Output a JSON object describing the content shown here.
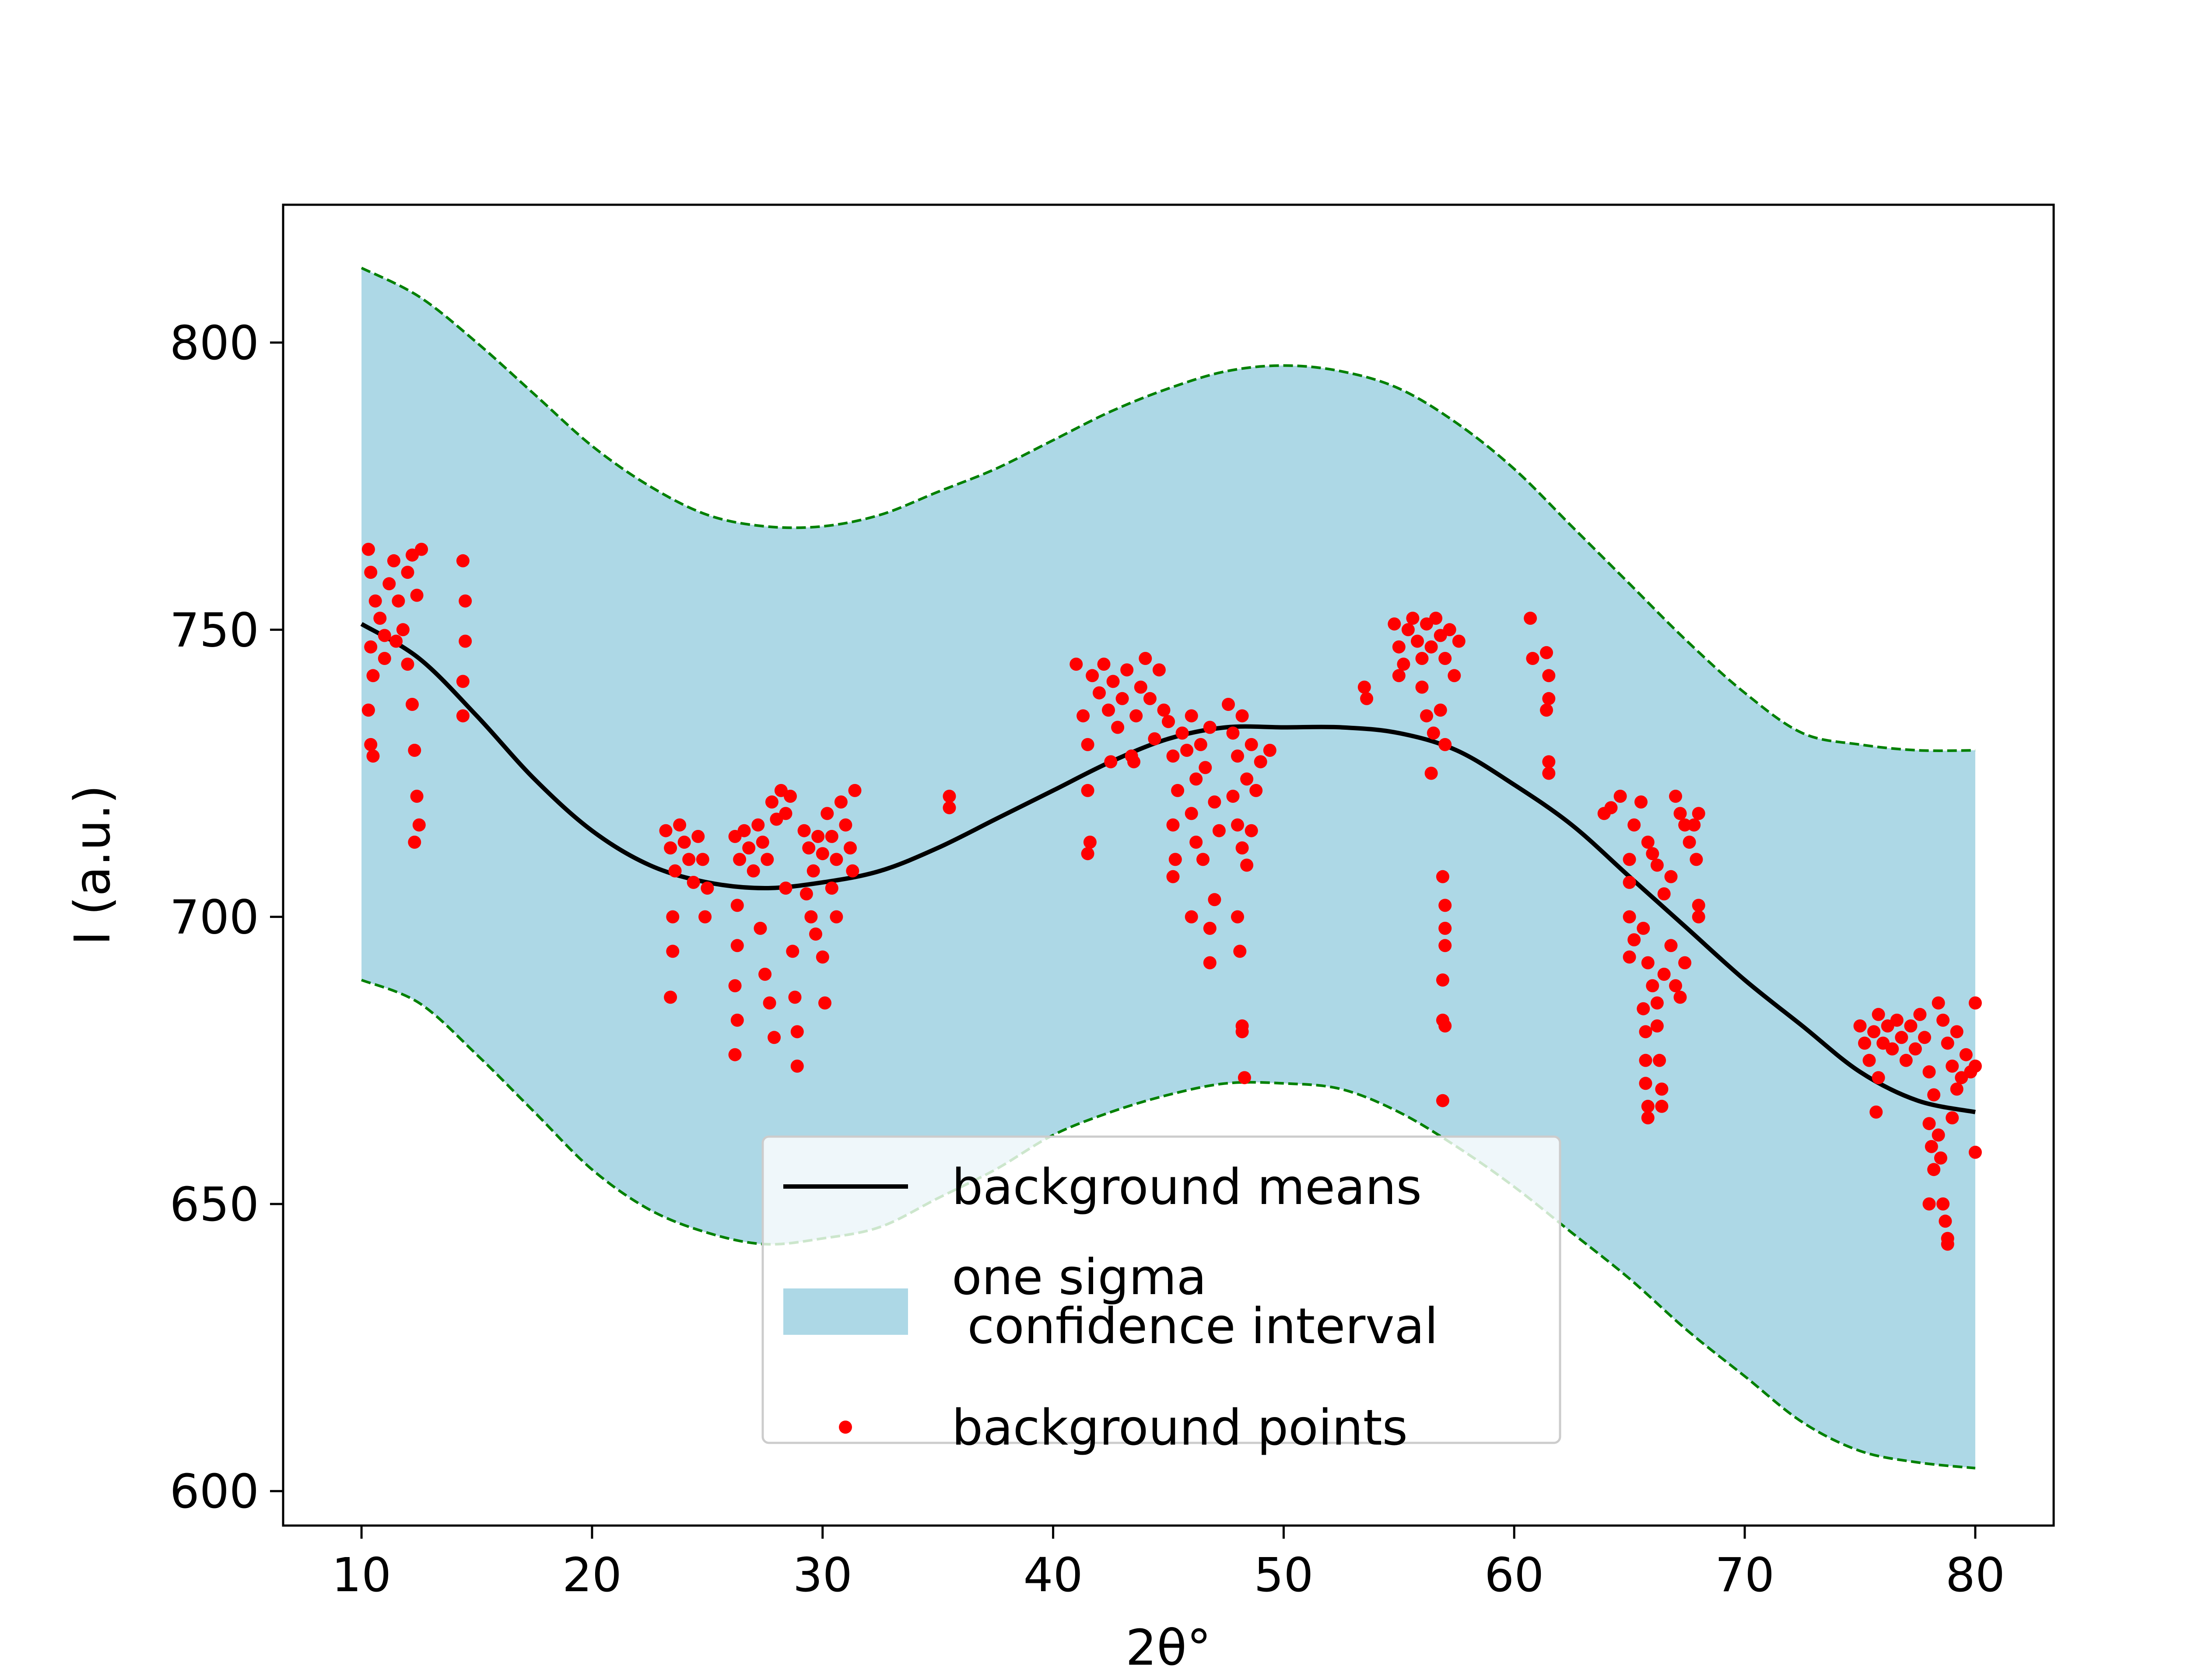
{
  "chart_data": {
    "type": "line",
    "title": "",
    "xlabel": "2θ°",
    "ylabel": "I (a.u.)",
    "xlim": [
      6.6,
      83.4
    ],
    "ylim": [
      594,
      824
    ],
    "xticks": [
      10,
      20,
      30,
      40,
      50,
      60,
      70,
      80
    ],
    "yticks": [
      600,
      650,
      700,
      750,
      800
    ],
    "grid": false,
    "legend_position": "bottom-center",
    "colors": {
      "mean_line": "#000000",
      "band_fill": "#add8e6",
      "band_edge": "#008000",
      "points": "#ff0000"
    },
    "series": [
      {
        "name": "background means",
        "kind": "line",
        "x": [
          10,
          12.5,
          15,
          17.5,
          20,
          22.5,
          25,
          27.5,
          30,
          32.5,
          35,
          37.5,
          40,
          42.5,
          45,
          47.5,
          50,
          52.5,
          55,
          57.5,
          60,
          62.5,
          65,
          67.5,
          70,
          72.5,
          75,
          77.5,
          80
        ],
        "y": [
          751,
          745,
          735,
          724,
          715,
          709,
          706,
          705,
          706,
          708,
          712,
          717,
          722,
          727,
          731,
          733,
          733,
          733,
          732,
          729,
          723,
          716,
          707,
          698,
          689,
          681,
          673,
          668,
          666
        ]
      },
      {
        "name": "one sigma\n confidence interval",
        "kind": "band",
        "x": [
          10,
          12.5,
          15,
          17.5,
          20,
          22.5,
          25,
          27.5,
          30,
          32.5,
          35,
          37.5,
          40,
          42.5,
          45,
          47.5,
          50,
          52.5,
          55,
          57.5,
          60,
          62.5,
          65,
          67.5,
          70,
          72.5,
          75,
          77.5,
          80
        ],
        "upper": [
          813,
          808,
          800,
          791,
          782,
          775,
          770,
          768,
          768,
          770,
          774,
          778,
          783,
          788,
          792,
          795,
          796,
          795,
          792,
          786,
          778,
          768,
          758,
          748,
          739,
          732,
          730,
          729,
          729
        ],
        "lower": [
          689,
          685,
          676,
          666,
          656,
          649,
          645,
          643,
          644,
          646,
          651,
          656,
          662,
          666,
          669,
          671,
          671,
          670,
          666,
          660,
          653,
          645,
          637,
          628,
          620,
          612,
          607,
          605,
          604
        ]
      },
      {
        "name": "background points",
        "kind": "scatter",
        "points": [
          [
            10.3,
            764
          ],
          [
            10.4,
            760
          ],
          [
            10.6,
            755
          ],
          [
            10.8,
            752
          ],
          [
            11.0,
            749
          ],
          [
            11.2,
            758
          ],
          [
            11.4,
            762
          ],
          [
            11.6,
            755
          ],
          [
            11.8,
            750
          ],
          [
            12.0,
            760
          ],
          [
            12.2,
            763
          ],
          [
            12.4,
            756
          ],
          [
            12.6,
            764
          ],
          [
            10.4,
            747
          ],
          [
            10.5,
            742
          ],
          [
            10.3,
            736
          ],
          [
            10.4,
            730
          ],
          [
            10.5,
            728
          ],
          [
            11.0,
            745
          ],
          [
            11.5,
            748
          ],
          [
            12.0,
            744
          ],
          [
            12.2,
            737
          ],
          [
            12.3,
            729
          ],
          [
            12.4,
            721
          ],
          [
            12.5,
            716
          ],
          [
            12.3,
            713
          ],
          [
            14.4,
            762
          ],
          [
            14.5,
            755
          ],
          [
            14.5,
            748
          ],
          [
            14.4,
            741
          ],
          [
            14.4,
            735
          ],
          [
            23.2,
            715
          ],
          [
            23.4,
            712
          ],
          [
            23.6,
            708
          ],
          [
            23.8,
            716
          ],
          [
            24.0,
            713
          ],
          [
            24.2,
            710
          ],
          [
            24.4,
            706
          ],
          [
            24.6,
            714
          ],
          [
            24.8,
            710
          ],
          [
            25.0,
            705
          ],
          [
            23.5,
            700
          ],
          [
            23.5,
            694
          ],
          [
            23.4,
            686
          ],
          [
            24.9,
            700
          ],
          [
            26.2,
            714
          ],
          [
            26.4,
            710
          ],
          [
            26.6,
            715
          ],
          [
            26.8,
            712
          ],
          [
            27.0,
            708
          ],
          [
            27.2,
            716
          ],
          [
            27.4,
            713
          ],
          [
            27.6,
            710
          ],
          [
            27.8,
            720
          ],
          [
            28.0,
            717
          ],
          [
            28.2,
            722
          ],
          [
            28.4,
            718
          ],
          [
            28.6,
            721
          ],
          [
            26.3,
            702
          ],
          [
            26.3,
            695
          ],
          [
            26.2,
            688
          ],
          [
            26.3,
            682
          ],
          [
            26.2,
            676
          ],
          [
            27.3,
            698
          ],
          [
            27.5,
            690
          ],
          [
            27.7,
            685
          ],
          [
            27.9,
            679
          ],
          [
            28.4,
            705
          ],
          [
            28.7,
            694
          ],
          [
            28.8,
            686
          ],
          [
            28.9,
            680
          ],
          [
            28.9,
            674
          ],
          [
            29.2,
            715
          ],
          [
            29.4,
            712
          ],
          [
            29.6,
            708
          ],
          [
            29.8,
            714
          ],
          [
            30.0,
            711
          ],
          [
            30.2,
            718
          ],
          [
            30.4,
            714
          ],
          [
            30.6,
            710
          ],
          [
            30.8,
            720
          ],
          [
            31.0,
            716
          ],
          [
            31.2,
            712
          ],
          [
            31.4,
            722
          ],
          [
            31.3,
            708
          ],
          [
            29.3,
            704
          ],
          [
            29.5,
            700
          ],
          [
            29.7,
            697
          ],
          [
            30.0,
            693
          ],
          [
            30.1,
            685
          ],
          [
            30.4,
            705
          ],
          [
            30.6,
            700
          ],
          [
            35.5,
            721
          ],
          [
            35.5,
            719
          ],
          [
            41.0,
            744
          ],
          [
            41.3,
            735
          ],
          [
            41.5,
            730
          ],
          [
            41.7,
            742
          ],
          [
            42.0,
            739
          ],
          [
            42.2,
            744
          ],
          [
            42.4,
            736
          ],
          [
            42.6,
            741
          ],
          [
            42.8,
            733
          ],
          [
            43.0,
            738
          ],
          [
            43.2,
            743
          ],
          [
            43.4,
            728
          ],
          [
            43.6,
            735
          ],
          [
            43.8,
            740
          ],
          [
            44.0,
            745
          ],
          [
            44.2,
            738
          ],
          [
            44.4,
            731
          ],
          [
            44.6,
            743
          ],
          [
            44.8,
            736
          ],
          [
            41.5,
            722
          ],
          [
            41.6,
            713
          ],
          [
            41.5,
            711
          ],
          [
            42.5,
            727
          ],
          [
            43.5,
            727
          ],
          [
            45.0,
            734
          ],
          [
            45.2,
            728
          ],
          [
            45.4,
            722
          ],
          [
            45.6,
            732
          ],
          [
            45.8,
            729
          ],
          [
            46.0,
            735
          ],
          [
            46.2,
            724
          ],
          [
            46.4,
            730
          ],
          [
            46.6,
            726
          ],
          [
            46.8,
            733
          ],
          [
            47.0,
            720
          ],
          [
            47.2,
            715
          ],
          [
            45.2,
            716
          ],
          [
            45.3,
            710
          ],
          [
            45.2,
            707
          ],
          [
            46.0,
            718
          ],
          [
            46.2,
            713
          ],
          [
            46.5,
            710
          ],
          [
            46.0,
            700
          ],
          [
            46.8,
            698
          ],
          [
            47.0,
            703
          ],
          [
            46.8,
            692
          ],
          [
            47.6,
            737
          ],
          [
            47.8,
            732
          ],
          [
            48.0,
            728
          ],
          [
            48.2,
            735
          ],
          [
            48.4,
            724
          ],
          [
            48.6,
            730
          ],
          [
            48.8,
            722
          ],
          [
            49.0,
            727
          ],
          [
            49.4,
            729
          ],
          [
            47.8,
            721
          ],
          [
            48.0,
            716
          ],
          [
            48.2,
            712
          ],
          [
            48.4,
            709
          ],
          [
            48.6,
            715
          ],
          [
            48.0,
            700
          ],
          [
            48.1,
            694
          ],
          [
            48.2,
            681
          ],
          [
            48.2,
            680
          ],
          [
            48.3,
            672
          ],
          [
            53.5,
            740
          ],
          [
            53.6,
            738
          ],
          [
            54.8,
            751
          ],
          [
            55.0,
            747
          ],
          [
            55.2,
            744
          ],
          [
            55.4,
            750
          ],
          [
            55.6,
            752
          ],
          [
            55.8,
            748
          ],
          [
            56.0,
            745
          ],
          [
            56.2,
            751
          ],
          [
            56.4,
            747
          ],
          [
            56.6,
            752
          ],
          [
            56.8,
            749
          ],
          [
            57.0,
            745
          ],
          [
            57.2,
            750
          ],
          [
            57.4,
            742
          ],
          [
            57.6,
            748
          ],
          [
            56.0,
            740
          ],
          [
            56.2,
            735
          ],
          [
            56.5,
            732
          ],
          [
            56.8,
            736
          ],
          [
            57.0,
            730
          ],
          [
            56.4,
            725
          ],
          [
            55.0,
            742
          ],
          [
            56.9,
            707
          ],
          [
            57.0,
            702
          ],
          [
            57.0,
            698
          ],
          [
            57.0,
            695
          ],
          [
            56.9,
            689
          ],
          [
            56.9,
            682
          ],
          [
            57.0,
            681
          ],
          [
            56.9,
            668
          ],
          [
            60.7,
            752
          ],
          [
            60.8,
            745
          ],
          [
            61.4,
            746
          ],
          [
            61.5,
            742
          ],
          [
            61.5,
            738
          ],
          [
            61.4,
            736
          ],
          [
            61.5,
            727
          ],
          [
            61.5,
            725
          ],
          [
            63.9,
            718
          ],
          [
            64.2,
            719
          ],
          [
            64.6,
            721
          ],
          [
            65.0,
            710
          ],
          [
            65.2,
            716
          ],
          [
            65.5,
            720
          ],
          [
            65.8,
            713
          ],
          [
            66.0,
            711
          ],
          [
            66.2,
            709
          ],
          [
            66.5,
            704
          ],
          [
            66.8,
            707
          ],
          [
            67.0,
            721
          ],
          [
            67.2,
            718
          ],
          [
            67.4,
            716
          ],
          [
            67.6,
            713
          ],
          [
            67.8,
            716
          ],
          [
            68.0,
            718
          ],
          [
            67.9,
            710
          ],
          [
            68.0,
            702
          ],
          [
            68.0,
            700
          ],
          [
            65.0,
            706
          ],
          [
            65.0,
            700
          ],
          [
            65.2,
            696
          ],
          [
            65.0,
            693
          ],
          [
            65.6,
            698
          ],
          [
            65.8,
            692
          ],
          [
            66.0,
            688
          ],
          [
            66.2,
            685
          ],
          [
            66.5,
            690
          ],
          [
            66.8,
            695
          ],
          [
            67.0,
            688
          ],
          [
            67.2,
            686
          ],
          [
            67.4,
            692
          ],
          [
            65.6,
            684
          ],
          [
            65.7,
            680
          ],
          [
            65.7,
            675
          ],
          [
            65.7,
            671
          ],
          [
            65.8,
            667
          ],
          [
            65.8,
            665
          ],
          [
            66.2,
            681
          ],
          [
            66.3,
            675
          ],
          [
            66.4,
            670
          ],
          [
            66.4,
            667
          ],
          [
            75.0,
            681
          ],
          [
            75.2,
            678
          ],
          [
            75.4,
            675
          ],
          [
            75.6,
            680
          ],
          [
            75.8,
            683
          ],
          [
            76.0,
            678
          ],
          [
            76.2,
            681
          ],
          [
            76.4,
            677
          ],
          [
            76.6,
            682
          ],
          [
            76.8,
            679
          ],
          [
            77.0,
            675
          ],
          [
            77.2,
            681
          ],
          [
            77.4,
            677
          ],
          [
            77.6,
            683
          ],
          [
            77.8,
            679
          ],
          [
            78.0,
            673
          ],
          [
            78.2,
            669
          ],
          [
            78.4,
            685
          ],
          [
            78.6,
            682
          ],
          [
            78.8,
            678
          ],
          [
            79.0,
            674
          ],
          [
            79.2,
            680
          ],
          [
            79.4,
            672
          ],
          [
            79.6,
            676
          ],
          [
            79.8,
            673
          ],
          [
            80.0,
            685
          ],
          [
            75.8,
            672
          ],
          [
            75.7,
            666
          ],
          [
            78.0,
            664
          ],
          [
            78.1,
            660
          ],
          [
            78.2,
            656
          ],
          [
            78.4,
            662
          ],
          [
            78.5,
            658
          ],
          [
            78.6,
            650
          ],
          [
            78.7,
            647
          ],
          [
            78.8,
            644
          ],
          [
            78.8,
            643
          ],
          [
            79.0,
            665
          ],
          [
            79.2,
            670
          ],
          [
            80.0,
            674
          ],
          [
            80.0,
            659
          ],
          [
            78.0,
            650
          ]
        ]
      }
    ]
  }
}
